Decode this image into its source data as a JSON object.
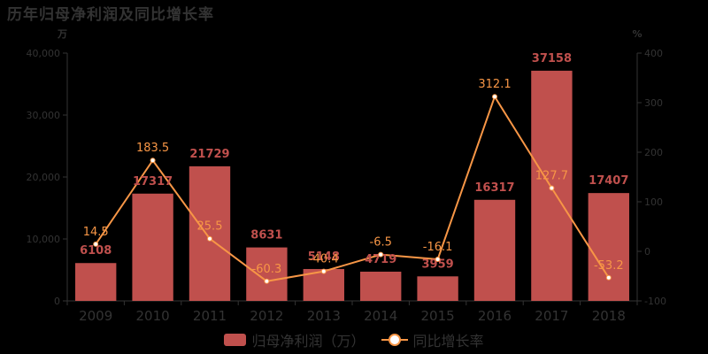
{
  "title": "历年归母净利润及同比增长率",
  "chart_data": {
    "type": "bar+line",
    "title": "历年归母净利润及同比增长率",
    "categories": [
      "2009",
      "2010",
      "2011",
      "2012",
      "2013",
      "2014",
      "2015",
      "2016",
      "2017",
      "2018"
    ],
    "series": [
      {
        "name": "归母净利润（万）",
        "type": "bar",
        "axis": "left",
        "color": "#c0504d",
        "values": [
          6108,
          17317,
          21729,
          8631,
          5148,
          4719,
          3959,
          16317,
          37158,
          17407
        ]
      },
      {
        "name": "同比增长率",
        "type": "line",
        "axis": "right",
        "color": "#f79646",
        "values": [
          14.5,
          183.5,
          25.5,
          -60.3,
          -40.4,
          -6.5,
          -16.1,
          312.1,
          127.7,
          -53.2
        ]
      }
    ],
    "left_axis": {
      "unit": "万",
      "ylim": [
        0,
        40000
      ],
      "ticks": [
        "0",
        "10,000",
        "20,000",
        "30,000",
        "40,000"
      ]
    },
    "right_axis": {
      "unit": "%",
      "ylim": [
        -100,
        400
      ],
      "ticks": [
        "-100",
        "0",
        "100",
        "200",
        "300",
        "400"
      ]
    },
    "grid": false,
    "legend_position": "bottom"
  },
  "legend": {
    "bar_label": "归母净利润（万）",
    "line_label": "同比增长率"
  }
}
